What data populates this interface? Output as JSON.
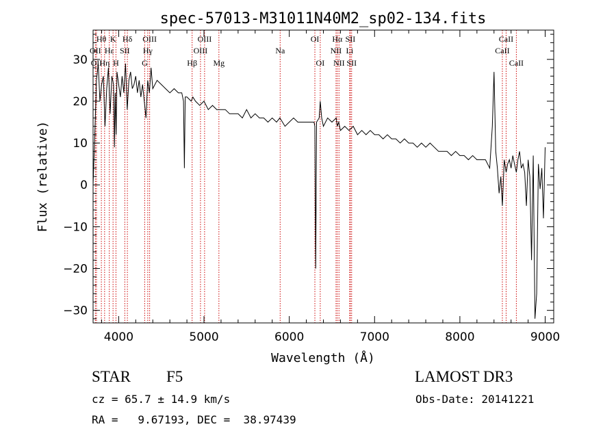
{
  "chart_data": {
    "type": "line",
    "title": "spec-57013-M31011N40M2_sp02-134.fits",
    "xlabel": "Wavelength (Å)",
    "ylabel": "Flux (relative)",
    "xlim": [
      3700,
      9100
    ],
    "ylim": [
      -33,
      37
    ],
    "xticks": [
      4000,
      5000,
      6000,
      7000,
      8000,
      9000
    ],
    "xtick_labels": [
      "4000",
      "5000",
      "6000",
      "7000",
      "8000",
      "9000"
    ],
    "yticks": [
      -30,
      -20,
      -10,
      0,
      10,
      20,
      30
    ],
    "ytick_labels": [
      "−30",
      "−20",
      "−10",
      "0",
      "10",
      "20",
      "30"
    ],
    "grid": false,
    "line_color": "#000000",
    "marker_color": "#cc0000",
    "series": [
      {
        "name": "flux",
        "x": [
          3700,
          3720,
          3740,
          3760,
          3780,
          3800,
          3820,
          3840,
          3860,
          3880,
          3900,
          3920,
          3940,
          3950,
          3960,
          3970,
          3980,
          4000,
          4020,
          4040,
          4060,
          4080,
          4100,
          4120,
          4140,
          4160,
          4180,
          4200,
          4220,
          4240,
          4260,
          4280,
          4300,
          4320,
          4340,
          4360,
          4380,
          4400,
          4450,
          4500,
          4550,
          4600,
          4650,
          4700,
          4740,
          4760,
          4770,
          4780,
          4800,
          4850,
          4870,
          4900,
          4950,
          5000,
          5050,
          5100,
          5150,
          5200,
          5250,
          5300,
          5350,
          5400,
          5450,
          5500,
          5550,
          5600,
          5650,
          5700,
          5750,
          5800,
          5850,
          5890,
          5920,
          5950,
          6000,
          6050,
          6100,
          6150,
          6200,
          6250,
          6290,
          6300,
          6310,
          6320,
          6350,
          6363,
          6380,
          6400,
          6450,
          6500,
          6550,
          6563,
          6580,
          6600,
          6650,
          6700,
          6750,
          6800,
          6850,
          6900,
          6950,
          7000,
          7050,
          7100,
          7150,
          7200,
          7250,
          7300,
          7350,
          7400,
          7450,
          7500,
          7550,
          7600,
          7650,
          7700,
          7750,
          7800,
          7850,
          7900,
          7950,
          8000,
          8050,
          8100,
          8150,
          8200,
          8250,
          8300,
          8350,
          8380,
          8400,
          8420,
          8440,
          8460,
          8480,
          8498,
          8520,
          8542,
          8560,
          8580,
          8600,
          8620,
          8640,
          8662,
          8680,
          8700,
          8720,
          8740,
          8760,
          8780,
          8800,
          8820,
          8840,
          8860,
          8880,
          8900,
          8920,
          8940,
          8960,
          8980,
          9000
        ],
        "y": [
          0,
          12,
          25,
          29,
          20,
          24,
          26,
          14,
          23,
          28,
          17,
          26,
          24,
          9,
          22,
          12,
          27,
          24,
          21,
          26,
          22,
          29,
          18,
          25,
          27,
          23,
          24,
          26,
          22,
          25,
          21,
          24,
          20,
          16,
          25,
          22,
          28,
          23,
          25,
          24,
          23,
          22,
          23,
          22,
          22,
          20,
          4,
          21,
          21,
          20,
          21,
          20,
          19,
          20,
          18,
          19,
          18,
          18,
          18,
          17,
          17,
          17,
          16,
          18,
          16,
          17,
          16,
          16,
          15,
          16,
          15,
          16,
          15,
          14,
          15,
          16,
          15,
          15,
          15,
          15,
          15,
          14,
          -20,
          15,
          16,
          20,
          16,
          14,
          16,
          15,
          16,
          14,
          15,
          13,
          14,
          13,
          14,
          12,
          13,
          12,
          13,
          12,
          12,
          11,
          12,
          11,
          11,
          10,
          11,
          10,
          10,
          9,
          10,
          9,
          10,
          9,
          8,
          8,
          8,
          7,
          8,
          7,
          7,
          6,
          7,
          6,
          6,
          6,
          4,
          14,
          27,
          8,
          4,
          -2,
          2,
          -5,
          6,
          3,
          5,
          6,
          4,
          7,
          5,
          3,
          6,
          8,
          4,
          5,
          3,
          -5,
          6,
          2,
          -18,
          7,
          -32,
          -26,
          5,
          -1,
          4,
          -8,
          9
        ]
      }
    ],
    "lines": [
      {
        "name": "Hθ",
        "x": 3797,
        "row": 1
      },
      {
        "name": "OII",
        "x": 3727,
        "row": 2
      },
      {
        "name": "OII",
        "x": 3740,
        "row": 3
      },
      {
        "name": "Hη",
        "x": 3835,
        "row": 3
      },
      {
        "name": "K",
        "x": 3934,
        "row": 1
      },
      {
        "name": "H",
        "x": 3968,
        "row": 3
      },
      {
        "name": "Hε",
        "x": 3890,
        "row": 2
      },
      {
        "name": "SII",
        "x": 4072,
        "row": 2
      },
      {
        "name": "Hδ",
        "x": 4102,
        "row": 1
      },
      {
        "name": "OIII",
        "x": 4363,
        "row": 1
      },
      {
        "name": "Hγ",
        "x": 4341,
        "row": 2
      },
      {
        "name": "G",
        "x": 4305,
        "row": 3
      },
      {
        "name": "Hβ",
        "x": 4861,
        "row": 3
      },
      {
        "name": "OIII",
        "x": 4959,
        "row": 2
      },
      {
        "name": "OIII",
        "x": 5007,
        "row": 1
      },
      {
        "name": "Mg",
        "x": 5175,
        "row": 3
      },
      {
        "name": "Na",
        "x": 5893,
        "row": 2
      },
      {
        "name": "OI",
        "x": 6300,
        "row": 1
      },
      {
        "name": "OI",
        "x": 6363,
        "row": 3
      },
      {
        "name": "NII",
        "x": 6548,
        "row": 2
      },
      {
        "name": "Hα",
        "x": 6563,
        "row": 1
      },
      {
        "name": "NII",
        "x": 6583,
        "row": 3
      },
      {
        "name": "SII",
        "x": 6716,
        "row": 1
      },
      {
        "name": "Li",
        "x": 6708,
        "row": 2
      },
      {
        "name": "SII",
        "x": 6731,
        "row": 3
      },
      {
        "name": "CaII",
        "x": 8498,
        "row": 2
      },
      {
        "name": "CaII",
        "x": 8542,
        "row": 1
      },
      {
        "name": "CaII",
        "x": 8662,
        "row": 3
      }
    ]
  },
  "info": {
    "object_class": "STAR",
    "subclass": "F5",
    "survey": "LAMOST DR3",
    "velocity": "cz = 65.7 ± 14.9 km/s",
    "obs_date": "Obs-Date: 20141221",
    "coords": "RA =   9.67193, DEC =  38.97439"
  }
}
